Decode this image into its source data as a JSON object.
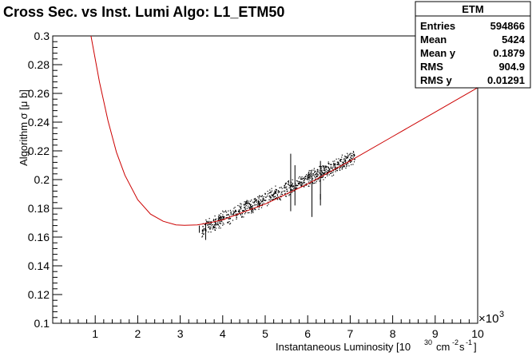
{
  "chart_data": {
    "type": "scatter",
    "title": "Cross Sec. vs Inst. Lumi Algo: L1_ETM50",
    "xlabel": "Instantaneous Luminosity [10",
    "xlabel_exp": "30",
    "xlabel_units": "cm",
    "xlabel_units_exp1": "-2",
    "xlabel_units_s": "s",
    "xlabel_units_exp2": "-1",
    "xlabel_close": "]",
    "ylabel": "Algorithm  σ [μ b]",
    "x_multiplier": "×10",
    "x_multiplier_exp": "3",
    "xlim": [
      0,
      10
    ],
    "ylim": [
      0.1,
      0.3
    ],
    "x_ticks": [
      1,
      2,
      3,
      4,
      5,
      6,
      7,
      8,
      9,
      10
    ],
    "y_ticks": [
      0.1,
      0.12,
      0.14,
      0.16,
      0.18,
      0.2,
      0.22,
      0.24,
      0.26,
      0.28,
      0.3
    ],
    "y_tick_labels": [
      "0.1",
      "0.12",
      "0.14",
      "0.16",
      "0.18",
      "0.2",
      "0.22",
      "0.24",
      "0.26",
      "0.28",
      "0.3"
    ],
    "fit_curve": {
      "color": "#cc0000",
      "x": [
        0.9,
        1.1,
        1.3,
        1.5,
        1.7,
        2.0,
        2.3,
        2.6,
        2.9,
        3.1,
        3.4,
        3.7,
        4.0,
        5.0,
        6.0,
        7.0,
        8.0,
        9.0,
        10.0
      ],
      "y": [
        0.3,
        0.268,
        0.241,
        0.219,
        0.203,
        0.186,
        0.176,
        0.171,
        0.1685,
        0.1682,
        0.1685,
        0.17,
        0.172,
        0.183,
        0.197,
        0.213,
        0.23,
        0.247,
        0.264
      ]
    },
    "scatter_band": {
      "color": "#000000",
      "x_range": [
        3.5,
        7.1
      ],
      "y_start": 0.166,
      "y_end": 0.216
    },
    "error_bars": [
      {
        "x": 3.45,
        "y_low": 0.163,
        "y_high": 0.168
      },
      {
        "x": 3.6,
        "y_low": 0.158,
        "y_high": 0.17
      },
      {
        "x": 5.6,
        "y_low": 0.178,
        "y_high": 0.218
      },
      {
        "x": 5.7,
        "y_low": 0.182,
        "y_high": 0.21
      },
      {
        "x": 6.1,
        "y_low": 0.174,
        "y_high": 0.203
      },
      {
        "x": 6.3,
        "y_low": 0.186,
        "y_high": 0.213
      },
      {
        "x": 6.3,
        "y_low": 0.182,
        "y_high": 0.19
      }
    ],
    "stats_box": {
      "name": "ETM",
      "rows": [
        {
          "label": "Entries",
          "value": "594866"
        },
        {
          "label": "Mean",
          "value": "5424"
        },
        {
          "label": "Mean y",
          "value": "0.1879"
        },
        {
          "label": "RMS",
          "value": "904.9"
        },
        {
          "label": "RMS y",
          "value": "0.01291"
        }
      ]
    }
  }
}
